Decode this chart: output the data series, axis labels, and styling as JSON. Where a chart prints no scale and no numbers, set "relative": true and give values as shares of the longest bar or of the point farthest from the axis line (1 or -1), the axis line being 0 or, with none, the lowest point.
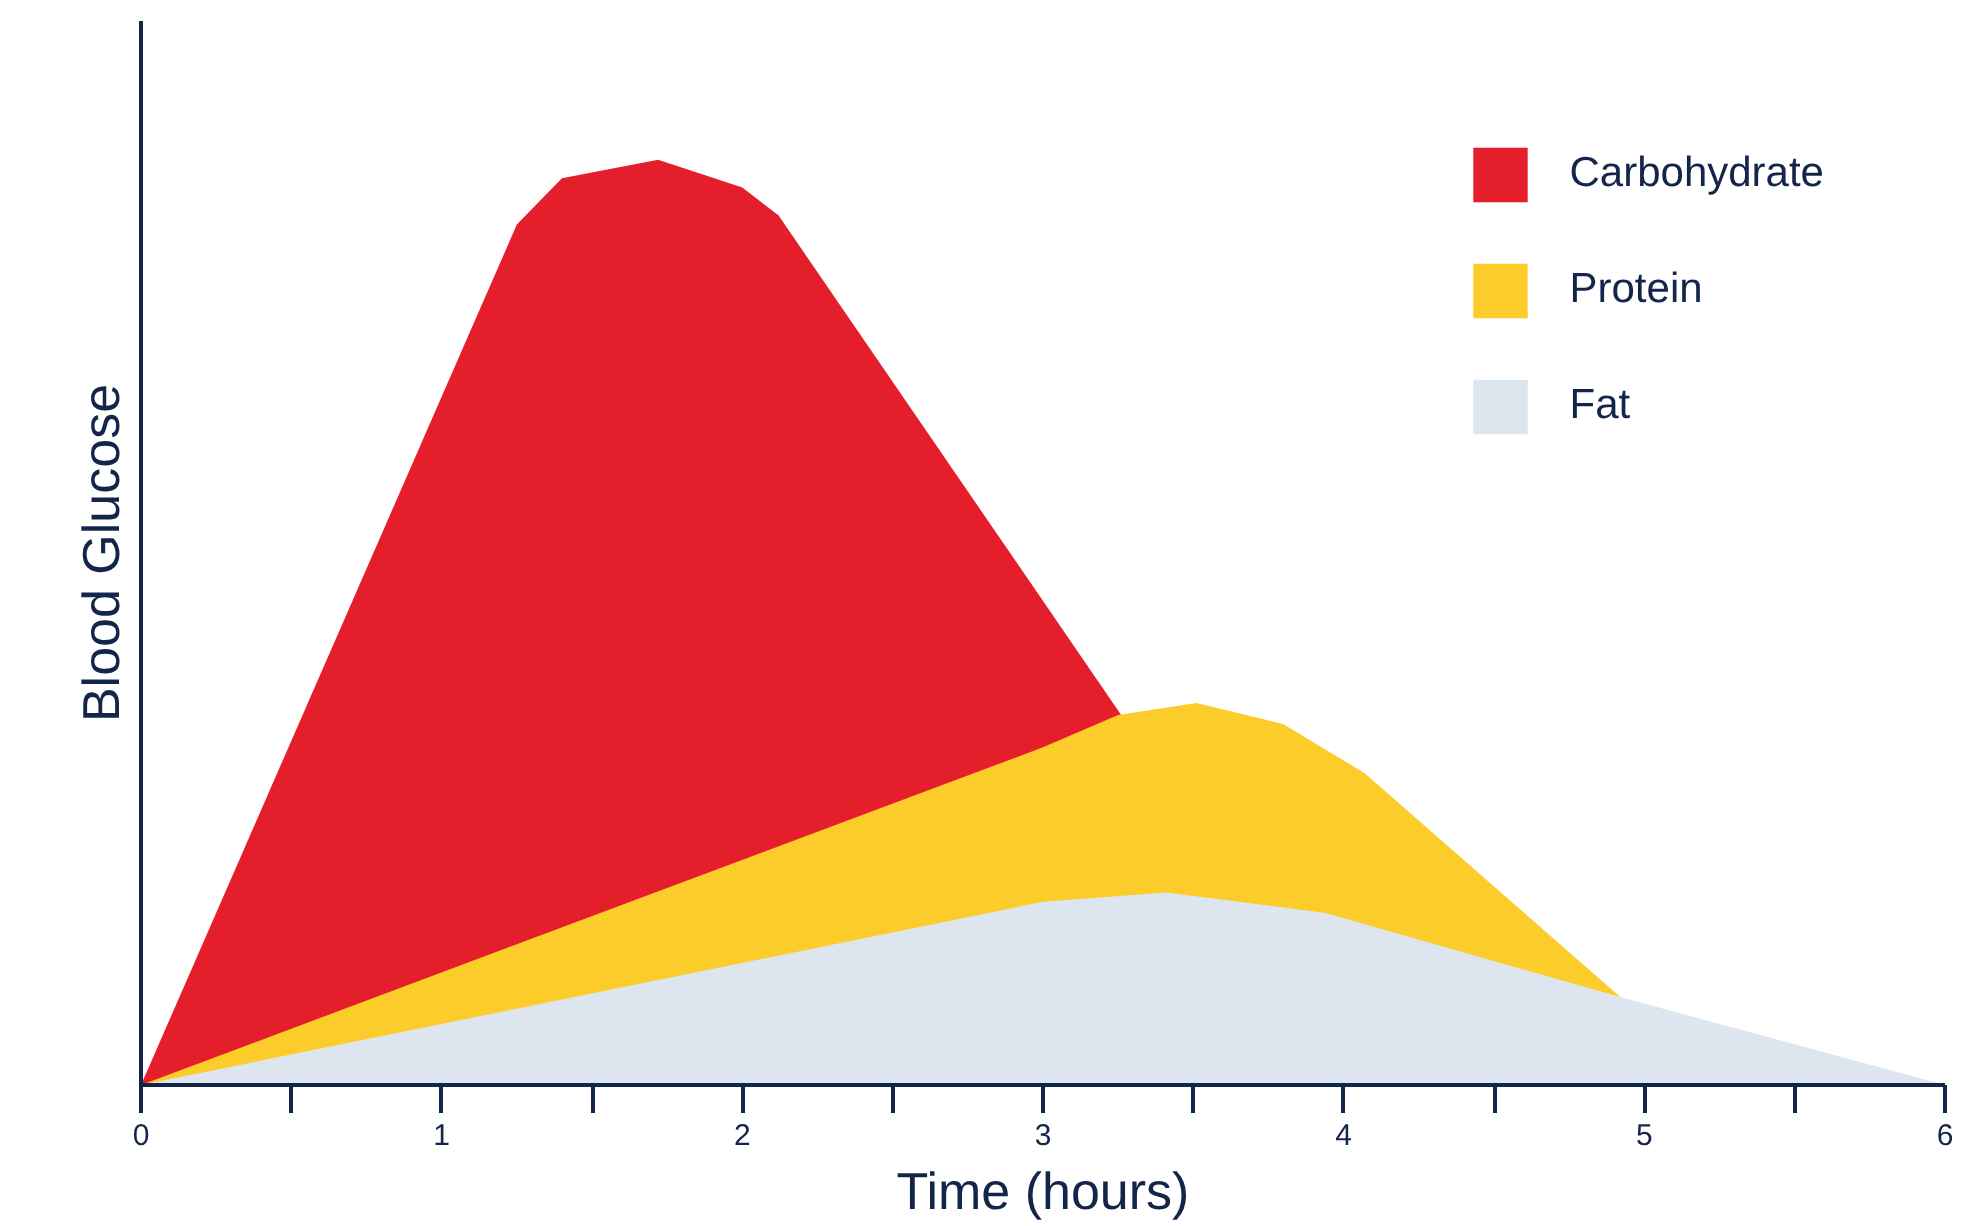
{
  "chart_data": {
    "type": "area",
    "relative": true,
    "xlabel": "Time (hours)",
    "ylabel": "Blood Glucose",
    "xlim": [
      0,
      6
    ],
    "xticks": [
      0,
      {
        "value": 0.5,
        "label": null
      },
      1,
      {
        "value": 1.5,
        "label": null
      },
      2,
      {
        "value": 2.5,
        "label": null
      },
      3,
      {
        "value": 3.5,
        "label": null
      },
      4,
      {
        "value": 4.5,
        "label": null
      },
      5,
      {
        "value": 5.5,
        "label": null
      },
      6
    ],
    "grid": false,
    "legend": "top right",
    "series": [
      {
        "name": "Carbohydrate",
        "color": "#e41e2a",
        "x": [
          0,
          1.25,
          1.4,
          1.72,
          2.0,
          2.12,
          3.26
        ],
        "values": [
          0,
          0.93,
          0.98,
          1.0,
          0.97,
          0.94,
          0.4
        ]
      },
      {
        "name": "Protein",
        "color": "#fccd2a",
        "x": [
          0,
          3.0,
          3.25,
          3.51,
          3.8,
          4.07,
          4.92
        ],
        "values": [
          0,
          0.365,
          0.4,
          0.413,
          0.39,
          0.337,
          0.095
        ]
      },
      {
        "name": "Fat",
        "color": "#dde6ef",
        "x": [
          0,
          3.0,
          3.41,
          3.94,
          4.92,
          6.0
        ],
        "values": [
          0,
          0.198,
          0.208,
          0.186,
          0.095,
          0
        ]
      }
    ]
  }
}
